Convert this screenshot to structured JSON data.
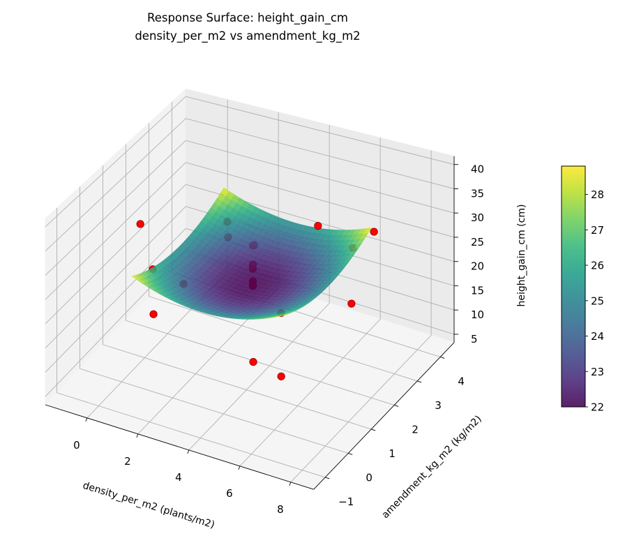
{
  "chart_data": {
    "type": "surface3d",
    "title": "Response Surface: height_gain_cm",
    "subtitle": "density_per_m2 vs amendment_kg_m2",
    "xlabel": "density_per_m2 (plants/m2)",
    "ylabel": "amendment_kg_m2 (kg/m2)",
    "zlabel": "height_gain_cm (cm)",
    "xlim": [
      -1.64,
      8.9
    ],
    "ylim": [
      -1.5,
      4.6
    ],
    "zlim": [
      3.3,
      41.7
    ],
    "x_ticks": [
      "0",
      "2",
      "4",
      "6",
      "8"
    ],
    "y_ticks": [
      "−1",
      "0",
      "1",
      "2",
      "3",
      "4"
    ],
    "z_ticks": [
      "5",
      "10",
      "15",
      "20",
      "25",
      "30",
      "35",
      "40"
    ],
    "grid": true,
    "surface": {
      "x_range": [
        0.85,
        6.65
      ],
      "y_range": [
        -0.5,
        3.5
      ],
      "z_min": 22,
      "z_max": 28.8,
      "colormap": "viridis",
      "opacity": 0.85
    },
    "points": [
      [
        -0.17,
        1.0,
        31.3
      ],
      [
        0.77,
        0.5,
        25.5
      ],
      [
        2.43,
        0.0,
        27.2
      ],
      [
        0.8,
        0.5,
        16.2
      ],
      [
        1.44,
        3.0,
        24.7
      ],
      [
        1.92,
        2.5,
        24.5
      ],
      [
        2.94,
        2.5,
        24.4
      ],
      [
        3.8,
        1.5,
        30.2
      ],
      [
        3.8,
        1.5,
        26.3
      ],
      [
        3.8,
        1.5,
        25.4
      ],
      [
        3.8,
        1.5,
        22.8
      ],
      [
        3.8,
        1.5,
        21.9
      ],
      [
        5.81,
        0.5,
        23.9
      ],
      [
        5.0,
        3.0,
        29.1
      ],
      [
        7.2,
        3.0,
        31.0
      ],
      [
        6.82,
        2.5,
        29.4
      ],
      [
        7.22,
        2.0,
        21.0
      ],
      [
        5.17,
        0.0,
        15.5
      ],
      [
        6.72,
        -0.5,
        17.2
      ]
    ],
    "point_color": "#ff0000",
    "colorbar": {
      "range": [
        22,
        28.8
      ],
      "ticks": [
        "22",
        "23",
        "24",
        "25",
        "26",
        "27",
        "28"
      ]
    }
  }
}
